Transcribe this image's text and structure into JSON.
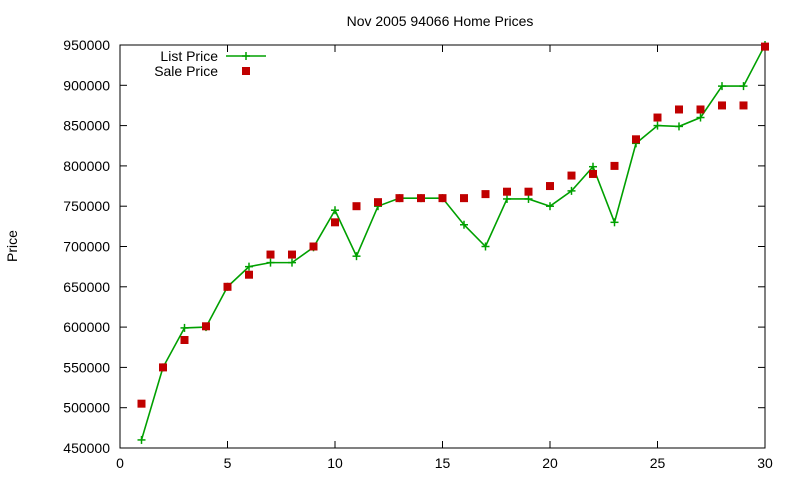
{
  "chart_data": {
    "type": "line",
    "title": "Nov 2005 94066 Home Prices",
    "xlabel": "",
    "ylabel": "Price",
    "xlim": [
      0,
      30
    ],
    "ylim": [
      450000,
      950000
    ],
    "x_ticks": [
      0,
      5,
      10,
      15,
      20,
      25,
      30
    ],
    "y_ticks": [
      450000,
      500000,
      550000,
      600000,
      650000,
      700000,
      750000,
      800000,
      850000,
      900000,
      950000
    ],
    "grid": false,
    "legend_position": "top-left",
    "series": [
      {
        "name": "List Price",
        "style": "linespoints",
        "marker": "plus",
        "color": "#00a000",
        "x": [
          1,
          2,
          3,
          4,
          5,
          6,
          7,
          8,
          9,
          10,
          11,
          12,
          13,
          14,
          15,
          16,
          17,
          18,
          19,
          20,
          21,
          22,
          23,
          24,
          25,
          26,
          27,
          28,
          29,
          30
        ],
        "values": [
          460000,
          550000,
          599000,
          600000,
          650000,
          675000,
          680000,
          680000,
          699000,
          745000,
          688000,
          750000,
          760000,
          760000,
          760000,
          727000,
          700000,
          759000,
          759000,
          750000,
          769000,
          799000,
          730000,
          828000,
          850000,
          849000,
          860000,
          899000,
          899000,
          950000
        ]
      },
      {
        "name": "Sale Price",
        "style": "points",
        "marker": "square",
        "color": "#c00000",
        "x": [
          1,
          2,
          3,
          4,
          5,
          6,
          7,
          8,
          9,
          10,
          11,
          12,
          13,
          14,
          15,
          16,
          17,
          18,
          19,
          20,
          21,
          22,
          23,
          24,
          25,
          26,
          27,
          28,
          29,
          30
        ],
        "values": [
          505000,
          550000,
          584000,
          601000,
          650000,
          665000,
          690000,
          690000,
          700000,
          730000,
          750000,
          755000,
          760000,
          760000,
          760000,
          760000,
          765000,
          768000,
          768000,
          775000,
          788000,
          790000,
          800000,
          833000,
          860000,
          870000,
          870000,
          875000,
          875000,
          948000
        ]
      }
    ]
  }
}
